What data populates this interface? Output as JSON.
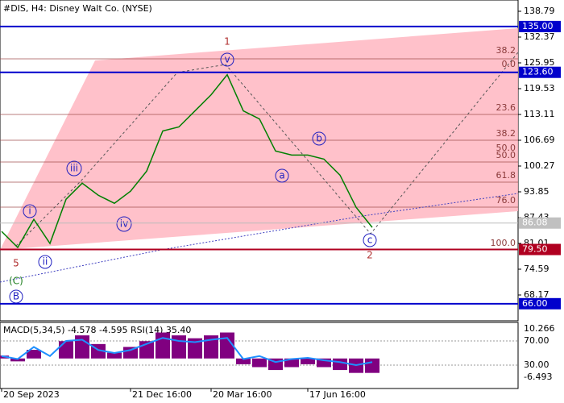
{
  "chart_data": [
    {
      "type": "line",
      "title": "#DIS, H4:  Disney Walt Co. (NYSE)",
      "series": [
        {
          "name": "DIS",
          "color": "#008000",
          "values": [
            84,
            80,
            87,
            81,
            92,
            96,
            93,
            91,
            94,
            99,
            109,
            110,
            114,
            118,
            123,
            114,
            112,
            104,
            103,
            103,
            102,
            98,
            90,
            85
          ]
        }
      ],
      "ylim": [
        61.75,
        141.6
      ],
      "yticks": [
        {
          "value": 138.79,
          "label": "138.79"
        },
        {
          "value": 132.37,
          "label": "132.37"
        },
        {
          "value": 125.95,
          "label": "125.95"
        },
        {
          "value": 119.53,
          "label": "119.53"
        },
        {
          "value": 113.11,
          "label": "113.11"
        },
        {
          "value": 106.69,
          "label": "106.69"
        },
        {
          "value": 100.27,
          "label": "100.27"
        },
        {
          "value": 93.85,
          "label": "93.85"
        },
        {
          "value": 87.43,
          "label": "87.43"
        },
        {
          "value": 81.01,
          "label": "81.01"
        },
        {
          "value": 74.59,
          "label": "74.59"
        },
        {
          "value": 68.17,
          "label": "68.17"
        }
      ],
      "xticks": [
        {
          "value": 0,
          "label": "20 Sep 2023"
        },
        {
          "value": 8,
          "label": "21 Dec 16:00"
        },
        {
          "value": 13,
          "label": "20 Mar 16:00"
        },
        {
          "value": 19,
          "label": "17 Jun 16:00"
        }
      ],
      "levels": [
        {
          "value": 135.0,
          "label": "135.00",
          "color": "#0000cc"
        },
        {
          "value": 123.6,
          "label": "123.60",
          "color": "#0000cc"
        },
        {
          "value": 79.5,
          "label": "79.50",
          "color": "#b00020"
        },
        {
          "value": 66.0,
          "label": "66.00",
          "color": "#0000cc"
        }
      ],
      "current_price": {
        "value": 86.08,
        "label": "86.08"
      },
      "fib_labels": [
        "38.2",
        "0.0",
        "23.6",
        "38.2",
        "50.0",
        "50.0",
        "61.8",
        "76.0",
        "100.0"
      ],
      "wave_labels": [
        "1",
        "2",
        "5",
        "(C)",
        "B",
        "i",
        "ii",
        "iii",
        "iv",
        "v",
        "a",
        "b",
        "c"
      ]
    },
    {
      "type": "indicator",
      "title": "MACD(5,34,5) -4.578 -4.595 RSI(14) 35.40",
      "macd": {
        "color": "#800080",
        "values": [
          1,
          -1,
          3,
          0,
          6,
          8,
          5,
          2,
          4,
          6,
          9,
          8,
          7,
          8,
          9,
          -2,
          -3,
          -4,
          -3,
          -2,
          -3,
          -4,
          -5,
          -5
        ],
        "ylim": [
          -10.4,
          11.94
        ],
        "yticks": [
          10.266,
          -6.493
        ]
      },
      "rsi": {
        "color": "#1e90ff",
        "values": [
          45,
          40,
          60,
          45,
          70,
          72,
          55,
          50,
          55,
          65,
          75,
          70,
          68,
          72,
          75,
          40,
          45,
          35,
          40,
          42,
          38,
          35,
          30,
          35
        ],
        "ylim": [
          -8.7,
          98
        ],
        "yticks": [
          {
            "value": 70,
            "label": "70.00"
          },
          {
            "value": 30,
            "label": "30.00"
          }
        ]
      }
    }
  ]
}
